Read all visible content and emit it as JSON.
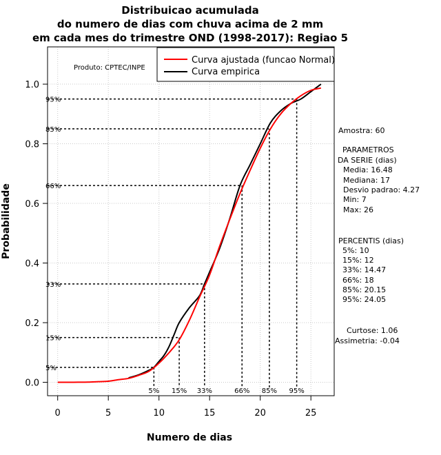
{
  "chart_data": {
    "type": "line",
    "title": [
      "Distribuicao acumulada",
      "do numero de dias com chuva acima de 2 mm",
      "em cada mes do trimestre OND (1998-2017): Regiao 5"
    ],
    "xlabel": "Numero de dias",
    "ylabel": "Probabilidade",
    "xlim": [
      -1,
      27.3
    ],
    "ylim": [
      -0.045,
      1.125
    ],
    "xticks": [
      0,
      5,
      10,
      15,
      20,
      25
    ],
    "yticks": [
      0.0,
      0.2,
      0.4,
      0.6,
      0.8,
      1.0
    ],
    "xtick_labels": [
      "0",
      "5",
      "10",
      "15",
      "20",
      "25"
    ],
    "ytick_labels": [
      "0.0",
      "0.2",
      "0.4",
      "0.6",
      "0.8",
      "1.0"
    ],
    "grid": true,
    "legend": {
      "position": "top-right",
      "entries": [
        {
          "label": "Curva ajustada (funcao Normal)",
          "color": "#ff0000"
        },
        {
          "label": "Curva empirica",
          "color": "#000000"
        }
      ]
    },
    "source_label": "Produto: CPTEC/INPE",
    "series": [
      {
        "name": "Curva ajustada (funcao Normal)",
        "color": "#ff0000",
        "x": [
          0,
          1,
          2,
          3,
          4,
          5,
          6,
          7,
          8,
          9,
          10,
          11,
          12,
          13,
          14,
          15,
          16,
          17,
          18,
          19,
          20,
          21,
          22,
          23,
          24,
          25,
          26
        ],
        "y": [
          0.0,
          0.0001,
          0.0003,
          0.0008,
          0.0021,
          0.0036,
          0.0087,
          0.0132,
          0.0234,
          0.0366,
          0.0641,
          0.0996,
          0.1426,
          0.2079,
          0.2855,
          0.3603,
          0.4574,
          0.5474,
          0.6333,
          0.7112,
          0.7852,
          0.8497,
          0.8993,
          0.9345,
          0.961,
          0.9793,
          0.987
        ]
      },
      {
        "name": "Curva empirica",
        "color": "#000000",
        "x": [
          7,
          8,
          9,
          9.5,
          10,
          10.5,
          11,
          11.5,
          12,
          13,
          14,
          14.5,
          15,
          16,
          17,
          18,
          19,
          20,
          21,
          22,
          23,
          24,
          25,
          26
        ],
        "y": [
          0.015,
          0.025,
          0.04,
          0.05,
          0.07,
          0.09,
          0.12,
          0.16,
          0.2,
          0.25,
          0.29,
          0.33,
          0.37,
          0.45,
          0.55,
          0.66,
          0.73,
          0.8,
          0.87,
          0.91,
          0.935,
          0.95,
          0.975,
          1.0
        ]
      }
    ],
    "percentiles": [
      {
        "label": "5%",
        "value": 9.5,
        "prob": 0.05
      },
      {
        "label": "15%",
        "value": 12,
        "prob": 0.15
      },
      {
        "label": "33%",
        "value": 14.5,
        "prob": 0.33
      },
      {
        "label": "66%",
        "value": 18.2,
        "prob": 0.66
      },
      {
        "label": "85%",
        "value": 20.9,
        "prob": 0.85
      },
      {
        "label": "95%",
        "value": 23.6,
        "prob": 0.95
      }
    ],
    "stats": {
      "amostra": "Amostra: 60",
      "params_title_1": "PARAMETROS",
      "params_title_2": "DA SERIE (dias)",
      "media": "Media: 16.48",
      "mediana": "Mediana: 17",
      "desvio": "Desvio padrao: 4.27",
      "min": "Min: 7",
      "max": "Max: 26",
      "percentis_title": "PERCENTIS (dias)",
      "p5": "5%: 10",
      "p15": "15%: 12",
      "p33": "33%: 14.47",
      "p66": "66%: 18",
      "p85": "85%: 20.15",
      "p95": "95%: 24.05",
      "curtose": "Curtose: 1.06",
      "assimetria": "Assimetria: -0.04"
    }
  }
}
